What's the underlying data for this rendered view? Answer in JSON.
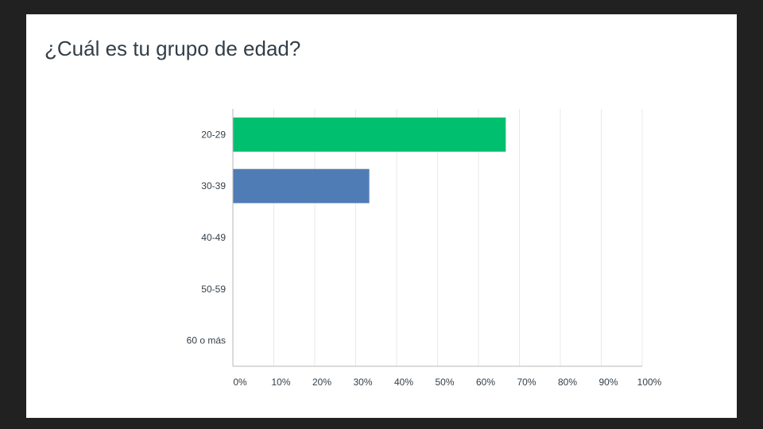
{
  "chart_data": {
    "type": "bar",
    "orientation": "horizontal",
    "title": "¿Cuál es tu grupo de edad?",
    "xlabel": "",
    "ylabel": "",
    "categories": [
      "20-29",
      "30-39",
      "40-49",
      "50-59",
      "60 o más"
    ],
    "values": [
      66.67,
      33.33,
      0,
      0,
      0
    ],
    "bar_colors": [
      "#00bf6f",
      "#507cb6",
      "#f9be00",
      "#6bc8cd",
      "#ff8b4f"
    ],
    "xlim": [
      0,
      100
    ],
    "xticks": [
      "0%",
      "10%",
      "20%",
      "30%",
      "40%",
      "50%",
      "60%",
      "70%",
      "80%",
      "90%",
      "100%"
    ],
    "grid": true,
    "legend": "none"
  },
  "colors": {
    "frame": "#212121",
    "card": "#ffffff",
    "text": "#333e48",
    "gridline": "#e8e8e8",
    "axis": "#b7b7b7"
  }
}
